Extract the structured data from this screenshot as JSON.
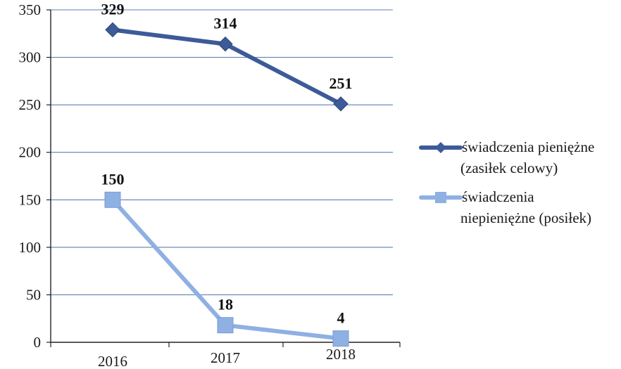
{
  "chart_data": {
    "type": "line",
    "categories": [
      "2016",
      "2017",
      "2018"
    ],
    "ylim": [
      0,
      350
    ],
    "yticks": [
      0,
      50,
      100,
      150,
      200,
      250,
      300,
      350
    ],
    "grid": true,
    "legend_position": "right",
    "series": [
      {
        "name": "świadczenia pieniężne (zasiłek celowy)",
        "name_lines": [
          "świadczenia pieniężne",
          "(zasiłek celowy)"
        ],
        "values": [
          329,
          314,
          251
        ],
        "color": "#3d5a99",
        "marker": "diamond"
      },
      {
        "name": "świadczenia niepieniężne (posiłek)",
        "name_lines": [
          "świadczenia",
          "niepieniężne (posiłek)"
        ],
        "values": [
          150,
          18,
          4
        ],
        "color": "#8fb0e3",
        "marker": "square"
      }
    ]
  }
}
